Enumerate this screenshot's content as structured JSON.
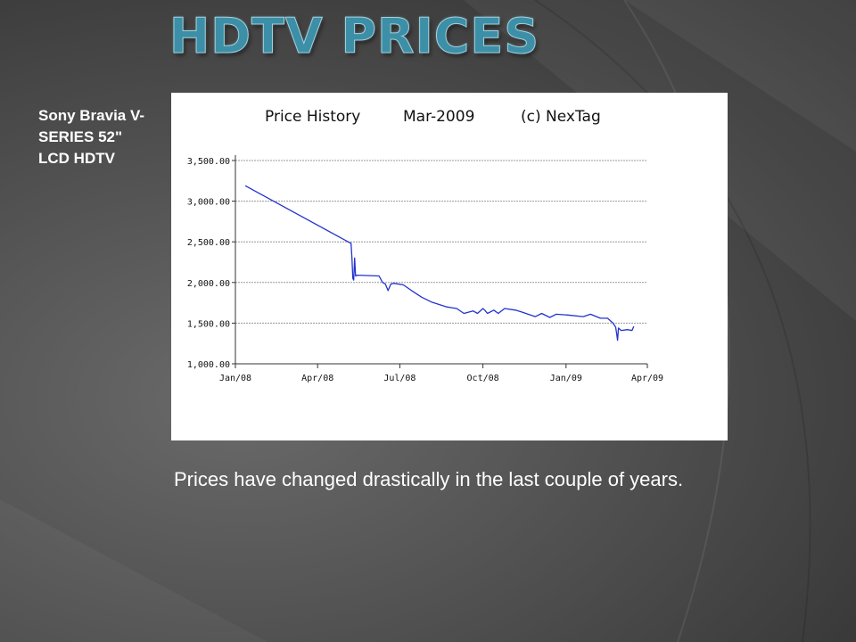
{
  "slide": {
    "title": "HDTV Prices",
    "side_caption": "Sony Bravia V-SERIES 52\" LCD HDTV",
    "body_text": "Prices have changed drastically in the last couple of years."
  },
  "colors": {
    "title": "#3c8fa6",
    "line": "#2233cc",
    "grid": "#999999",
    "background": "#4a4a4a"
  },
  "chart_data": {
    "type": "line",
    "title_parts": [
      "Price History",
      "Mar-2009",
      "(c) NexTag"
    ],
    "xlabel": "",
    "ylabel": "",
    "x_ticks": [
      "Jan/08",
      "Apr/08",
      "Jul/08",
      "Oct/08",
      "Jan/09",
      "Apr/09"
    ],
    "y_ticks": [
      "1,000.00",
      "1,500.00",
      "2,000.00",
      "2,500.00",
      "3,000.00",
      "3,500.00"
    ],
    "xlim": [
      "2008-01-01",
      "2009-04-01"
    ],
    "ylim": [
      1000,
      3500
    ],
    "grid": "horizontal",
    "legend": "none",
    "series": [
      {
        "points": [
          [
            "2008-01-12",
            3190
          ],
          [
            "2008-05-08",
            2480
          ],
          [
            "2008-05-09",
            2300
          ],
          [
            "2008-05-10",
            2050
          ],
          [
            "2008-05-11",
            2030
          ],
          [
            "2008-05-12",
            2300
          ],
          [
            "2008-05-13",
            2080
          ],
          [
            "2008-05-15",
            2090
          ],
          [
            "2008-06-08",
            2080
          ],
          [
            "2008-06-10",
            2040
          ],
          [
            "2008-06-12",
            2000
          ],
          [
            "2008-06-15",
            1980
          ],
          [
            "2008-06-18",
            1900
          ],
          [
            "2008-06-21",
            1980
          ],
          [
            "2008-06-24",
            1990
          ],
          [
            "2008-07-05",
            1970
          ],
          [
            "2008-07-14",
            1900
          ],
          [
            "2008-07-25",
            1820
          ],
          [
            "2008-08-05",
            1760
          ],
          [
            "2008-08-22",
            1700
          ],
          [
            "2008-09-02",
            1680
          ],
          [
            "2008-09-10",
            1620
          ],
          [
            "2008-09-20",
            1650
          ],
          [
            "2008-09-25",
            1620
          ],
          [
            "2008-10-01",
            1680
          ],
          [
            "2008-10-03",
            1660
          ],
          [
            "2008-10-06",
            1620
          ],
          [
            "2008-10-13",
            1660
          ],
          [
            "2008-10-18",
            1620
          ],
          [
            "2008-10-25",
            1680
          ],
          [
            "2008-11-06",
            1660
          ],
          [
            "2008-11-12",
            1640
          ],
          [
            "2008-11-20",
            1610
          ],
          [
            "2008-11-28",
            1580
          ],
          [
            "2008-12-05",
            1620
          ],
          [
            "2008-12-14",
            1570
          ],
          [
            "2008-12-21",
            1610
          ],
          [
            "2009-01-03",
            1600
          ],
          [
            "2009-01-20",
            1580
          ],
          [
            "2009-01-28",
            1610
          ],
          [
            "2009-02-08",
            1560
          ],
          [
            "2009-02-16",
            1560
          ],
          [
            "2009-02-22",
            1500
          ],
          [
            "2009-02-25",
            1450
          ],
          [
            "2009-02-26",
            1370
          ],
          [
            "2009-02-27",
            1290
          ],
          [
            "2009-02-28",
            1440
          ],
          [
            "2009-03-03",
            1410
          ],
          [
            "2009-03-10",
            1420
          ],
          [
            "2009-03-15",
            1410
          ],
          [
            "2009-03-17",
            1460
          ]
        ]
      }
    ]
  }
}
